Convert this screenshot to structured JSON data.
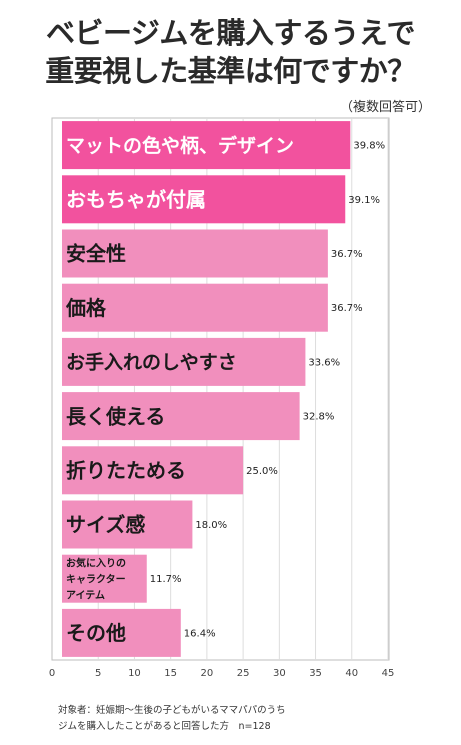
{
  "title_lines": [
    "ベビージムを購入するうえで",
    "重要視した基準は何ですか？"
  ],
  "subtitle": "（複数回答可）",
  "chart_data": {
    "type": "bar",
    "orientation": "horizontal",
    "categories": [
      "マットの色や柄、デザイン",
      "おもちゃが付属",
      "安全性",
      "価格",
      "お手入れのしやすさ",
      "長く使える",
      "折りたためる",
      "サイズ感",
      "お気に入りのキャラクターアイテム",
      "その他"
    ],
    "category_lines": [
      [
        "マットの色や柄、デザイン"
      ],
      [
        "おもちゃが付属"
      ],
      [
        "安全性"
      ],
      [
        "価格"
      ],
      [
        "お手入れのしやすさ"
      ],
      [
        "長く使える"
      ],
      [
        "折りたためる"
      ],
      [
        "サイズ感"
      ],
      [
        "お気に入りの",
        "キャラクター",
        "アイテム"
      ],
      [
        "その他"
      ]
    ],
    "values": [
      39.8,
      39.1,
      36.7,
      36.7,
      33.6,
      32.8,
      25.0,
      18.0,
      11.7,
      16.4
    ],
    "value_labels": [
      "39.8%",
      "39.1%",
      "36.7%",
      "36.7%",
      "33.6%",
      "32.8%",
      "25.0%",
      "18.0%",
      "11.7%",
      "16.4%"
    ],
    "highlight_count": 2,
    "xlim": [
      0,
      45
    ],
    "xticks": [
      "0",
      "5",
      "10",
      "15",
      "20",
      "25",
      "30",
      "35",
      "40",
      "45"
    ],
    "grid": true,
    "colors": {
      "highlight": "#f2529e",
      "normal": "#f18fbd",
      "grid": "#dddddd",
      "frame": "#bdbdbd"
    }
  },
  "footnote_lines": [
    "対象者：妊娠期～生後の子どもがいるママパパのうち",
    "ジムを購入したことがあると回答した方　n=128"
  ]
}
